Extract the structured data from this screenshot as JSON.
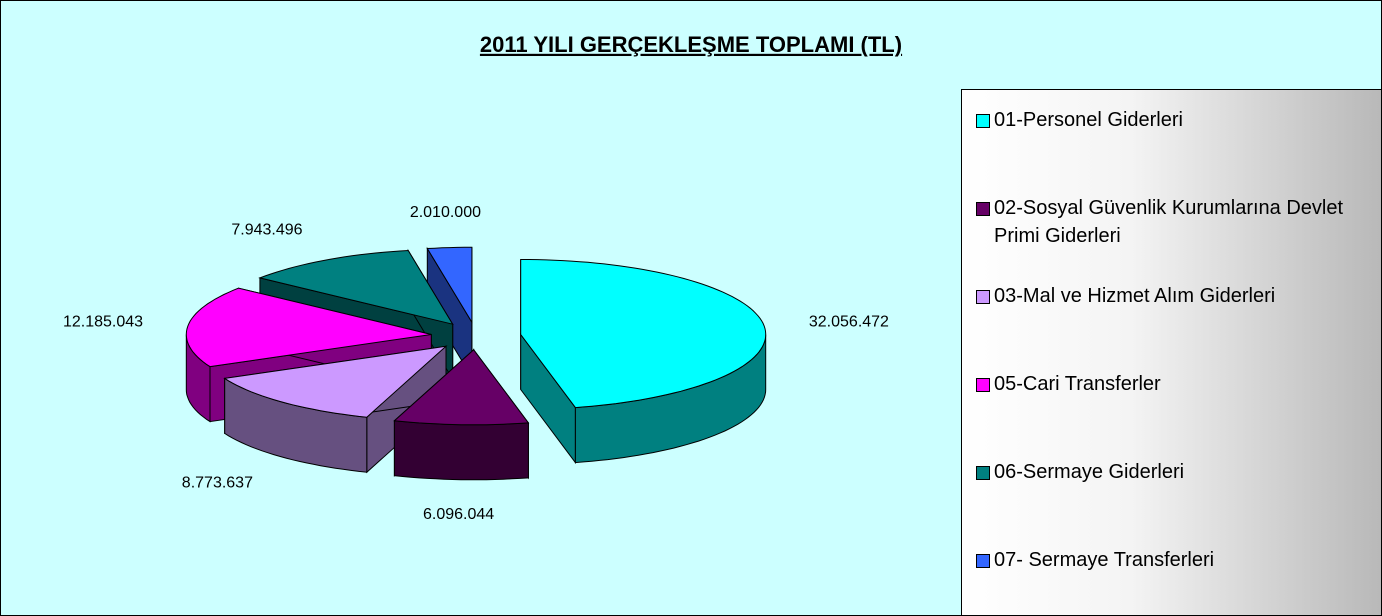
{
  "chart_data": {
    "type": "pie3d",
    "title": "2011 YILI GERÇEKLEŞME TOPLAMI (TL)",
    "categories": [
      "01-Personel Giderleri",
      "02-Sosyal Güvenlik Kurumlarına Devlet Primi Giderleri",
      "03-Mal ve Hizmet Alım Giderleri",
      "05-Cari Transferler",
      "06-Sermaye Giderleri",
      "07- Sermaye Transferleri"
    ],
    "values": [
      32056472,
      6096044,
      8773637,
      12185043,
      7943496,
      2010000
    ],
    "value_labels": [
      "32.056.472",
      "6.096.044",
      "8.773.637",
      "12.185.043",
      "7.943.496",
      "2.010.000"
    ],
    "colors": [
      "#00ffff",
      "#660066",
      "#cc99ff",
      "#ff00ff",
      "#008080",
      "#3366ff"
    ],
    "side_colors": [
      "#008080",
      "#330033",
      "#665080",
      "#800080",
      "#004040",
      "#1a3380"
    ],
    "legend": "right"
  }
}
